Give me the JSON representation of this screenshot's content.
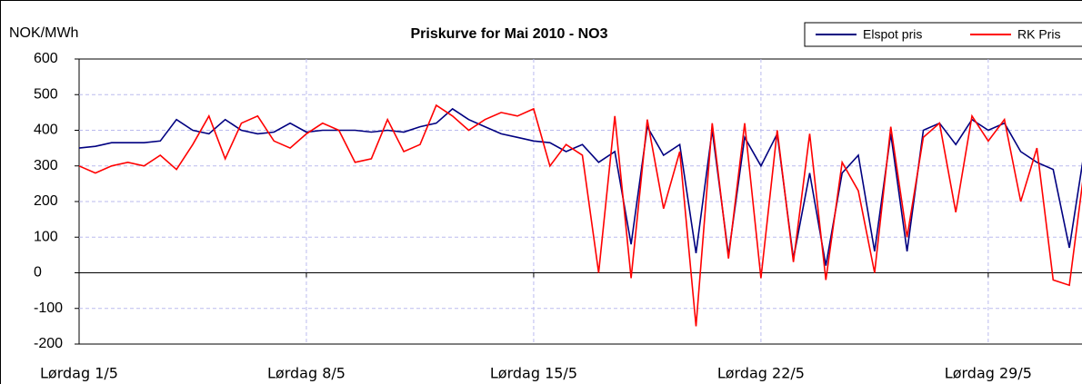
{
  "chart_data": {
    "type": "line",
    "title": "Priskurve for Mai 2010 - NO3",
    "y_label": "NOK/MWh",
    "x": [
      1,
      1.5,
      2,
      2.5,
      3,
      3.5,
      4,
      4.5,
      5,
      5.5,
      6,
      6.5,
      7,
      7.5,
      8,
      8.5,
      9,
      9.5,
      10,
      10.5,
      11,
      11.5,
      12,
      12.5,
      13,
      13.5,
      14,
      14.5,
      15,
      15.5,
      16,
      16.5,
      17,
      17.5,
      18,
      18.5,
      19,
      19.5,
      20,
      20.5,
      21,
      21.5,
      22,
      22.5,
      23,
      23.5,
      24,
      24.5,
      25,
      25.5,
      26,
      26.5,
      27,
      27.5,
      28,
      28.5,
      29,
      29.5,
      30,
      30.5,
      31,
      31.5,
      32
    ],
    "series": [
      {
        "name": "Elspot pris",
        "color": "#000080",
        "values": [
          350,
          355,
          365,
          365,
          365,
          370,
          430,
          400,
          390,
          430,
          400,
          390,
          395,
          420,
          395,
          400,
          400,
          400,
          395,
          400,
          395,
          410,
          420,
          460,
          430,
          410,
          390,
          380,
          370,
          365,
          340,
          360,
          310,
          340,
          80,
          410,
          330,
          360,
          55,
          400,
          50,
          380,
          300,
          390,
          40,
          280,
          20,
          280,
          330,
          60,
          390,
          60,
          400,
          420,
          360,
          430,
          400,
          420,
          340,
          310,
          290,
          70,
          365
        ]
      },
      {
        "name": "RK Pris",
        "color": "#ff0000",
        "values": [
          300,
          280,
          300,
          310,
          300,
          330,
          290,
          360,
          440,
          320,
          420,
          440,
          370,
          350,
          390,
          420,
          400,
          310,
          320,
          430,
          340,
          360,
          470,
          440,
          400,
          430,
          450,
          440,
          460,
          300,
          360,
          330,
          0,
          440,
          -15,
          430,
          180,
          340,
          -150,
          420,
          40,
          420,
          -15,
          400,
          30,
          390,
          -20,
          310,
          230,
          0,
          410,
          100,
          380,
          420,
          170,
          440,
          370,
          430,
          200,
          350,
          -20,
          -35,
          320
        ]
      }
    ],
    "xlim": [
      1,
      32
    ],
    "xticks": [
      {
        "value": 1,
        "label": "Lørdag 1/5"
      },
      {
        "value": 8,
        "label": "Lørdag  8/5"
      },
      {
        "value": 15,
        "label": "Lørdag  15/5"
      },
      {
        "value": 22,
        "label": "Lørdag  22/5"
      },
      {
        "value": 29,
        "label": "Lørdag 29/5"
      }
    ],
    "ylim": [
      -200,
      600
    ],
    "yticks": [
      -200,
      -100,
      0,
      100,
      200,
      300,
      400,
      500,
      600
    ],
    "grid": true,
    "legend": "top-right"
  }
}
